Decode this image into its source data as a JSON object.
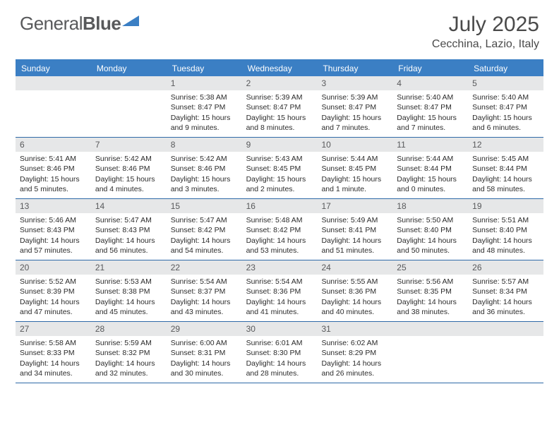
{
  "brand": {
    "part1": "General",
    "part2": "Blue"
  },
  "title": "July 2025",
  "location": "Cecchina, Lazio, Italy",
  "colors": {
    "header_bg": "#3b7fc4",
    "header_border": "#3b7fc4",
    "week_divider": "#2f6aa8",
    "daynum_bg": "#e6e7e8",
    "text": "#2b2b2b",
    "title_text": "#4a4a4a",
    "logo_text": "#58595b",
    "logo_icon": "#3b7fc4"
  },
  "day_names": [
    "Sunday",
    "Monday",
    "Tuesday",
    "Wednesday",
    "Thursday",
    "Friday",
    "Saturday"
  ],
  "weeks": [
    [
      null,
      null,
      {
        "n": "1",
        "sunrise": "5:38 AM",
        "sunset": "8:47 PM",
        "daylight": "15 hours and 9 minutes."
      },
      {
        "n": "2",
        "sunrise": "5:39 AM",
        "sunset": "8:47 PM",
        "daylight": "15 hours and 8 minutes."
      },
      {
        "n": "3",
        "sunrise": "5:39 AM",
        "sunset": "8:47 PM",
        "daylight": "15 hours and 7 minutes."
      },
      {
        "n": "4",
        "sunrise": "5:40 AM",
        "sunset": "8:47 PM",
        "daylight": "15 hours and 7 minutes."
      },
      {
        "n": "5",
        "sunrise": "5:40 AM",
        "sunset": "8:47 PM",
        "daylight": "15 hours and 6 minutes."
      }
    ],
    [
      {
        "n": "6",
        "sunrise": "5:41 AM",
        "sunset": "8:46 PM",
        "daylight": "15 hours and 5 minutes."
      },
      {
        "n": "7",
        "sunrise": "5:42 AM",
        "sunset": "8:46 PM",
        "daylight": "15 hours and 4 minutes."
      },
      {
        "n": "8",
        "sunrise": "5:42 AM",
        "sunset": "8:46 PM",
        "daylight": "15 hours and 3 minutes."
      },
      {
        "n": "9",
        "sunrise": "5:43 AM",
        "sunset": "8:45 PM",
        "daylight": "15 hours and 2 minutes."
      },
      {
        "n": "10",
        "sunrise": "5:44 AM",
        "sunset": "8:45 PM",
        "daylight": "15 hours and 1 minute."
      },
      {
        "n": "11",
        "sunrise": "5:44 AM",
        "sunset": "8:44 PM",
        "daylight": "15 hours and 0 minutes."
      },
      {
        "n": "12",
        "sunrise": "5:45 AM",
        "sunset": "8:44 PM",
        "daylight": "14 hours and 58 minutes."
      }
    ],
    [
      {
        "n": "13",
        "sunrise": "5:46 AM",
        "sunset": "8:43 PM",
        "daylight": "14 hours and 57 minutes."
      },
      {
        "n": "14",
        "sunrise": "5:47 AM",
        "sunset": "8:43 PM",
        "daylight": "14 hours and 56 minutes."
      },
      {
        "n": "15",
        "sunrise": "5:47 AM",
        "sunset": "8:42 PM",
        "daylight": "14 hours and 54 minutes."
      },
      {
        "n": "16",
        "sunrise": "5:48 AM",
        "sunset": "8:42 PM",
        "daylight": "14 hours and 53 minutes."
      },
      {
        "n": "17",
        "sunrise": "5:49 AM",
        "sunset": "8:41 PM",
        "daylight": "14 hours and 51 minutes."
      },
      {
        "n": "18",
        "sunrise": "5:50 AM",
        "sunset": "8:40 PM",
        "daylight": "14 hours and 50 minutes."
      },
      {
        "n": "19",
        "sunrise": "5:51 AM",
        "sunset": "8:40 PM",
        "daylight": "14 hours and 48 minutes."
      }
    ],
    [
      {
        "n": "20",
        "sunrise": "5:52 AM",
        "sunset": "8:39 PM",
        "daylight": "14 hours and 47 minutes."
      },
      {
        "n": "21",
        "sunrise": "5:53 AM",
        "sunset": "8:38 PM",
        "daylight": "14 hours and 45 minutes."
      },
      {
        "n": "22",
        "sunrise": "5:54 AM",
        "sunset": "8:37 PM",
        "daylight": "14 hours and 43 minutes."
      },
      {
        "n": "23",
        "sunrise": "5:54 AM",
        "sunset": "8:36 PM",
        "daylight": "14 hours and 41 minutes."
      },
      {
        "n": "24",
        "sunrise": "5:55 AM",
        "sunset": "8:36 PM",
        "daylight": "14 hours and 40 minutes."
      },
      {
        "n": "25",
        "sunrise": "5:56 AM",
        "sunset": "8:35 PM",
        "daylight": "14 hours and 38 minutes."
      },
      {
        "n": "26",
        "sunrise": "5:57 AM",
        "sunset": "8:34 PM",
        "daylight": "14 hours and 36 minutes."
      }
    ],
    [
      {
        "n": "27",
        "sunrise": "5:58 AM",
        "sunset": "8:33 PM",
        "daylight": "14 hours and 34 minutes."
      },
      {
        "n": "28",
        "sunrise": "5:59 AM",
        "sunset": "8:32 PM",
        "daylight": "14 hours and 32 minutes."
      },
      {
        "n": "29",
        "sunrise": "6:00 AM",
        "sunset": "8:31 PM",
        "daylight": "14 hours and 30 minutes."
      },
      {
        "n": "30",
        "sunrise": "6:01 AM",
        "sunset": "8:30 PM",
        "daylight": "14 hours and 28 minutes."
      },
      {
        "n": "31",
        "sunrise": "6:02 AM",
        "sunset": "8:29 PM",
        "daylight": "14 hours and 26 minutes."
      },
      null,
      null
    ]
  ],
  "labels": {
    "sunrise": "Sunrise:",
    "sunset": "Sunset:",
    "daylight": "Daylight:"
  }
}
